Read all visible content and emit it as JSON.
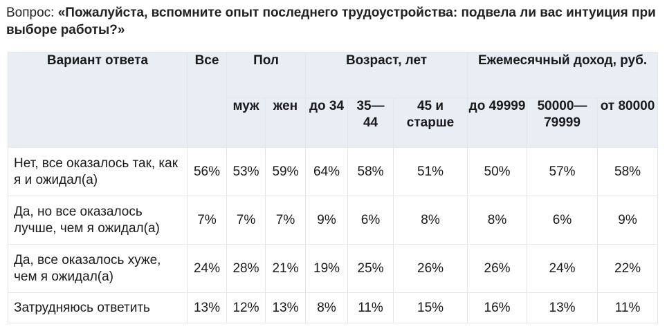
{
  "question": {
    "label": "Вопрос: ",
    "text": "«Пожалуйста, вспомните опыт последнего трудоустройства: подвела ли вас интуиция при выборе работы?»"
  },
  "table": {
    "headers": {
      "answer": "Вариант ответа",
      "all": "Все",
      "gender": "Пол",
      "age": "Возраст, лет",
      "income": "Ежемесячный доход, руб."
    },
    "subheaders": [
      "муж",
      "жен",
      "до 34",
      "35— 44",
      "45 и старше",
      "до 49999",
      "50000— 79999",
      "от 80000"
    ],
    "rows": [
      {
        "label": "Нет, все оказалось так, как я и ожидал(а)",
        "values": [
          "56%",
          "53%",
          "59%",
          "64%",
          "58%",
          "51%",
          "50%",
          "57%",
          "58%"
        ]
      },
      {
        "label": "Да, но все оказалось лучше, чем я ожидал(а)",
        "values": [
          "7%",
          "7%",
          "7%",
          "9%",
          "6%",
          "8%",
          "8%",
          "6%",
          "9%"
        ]
      },
      {
        "label": "Да, все оказалось хуже, чем я ожидал(а)",
        "values": [
          "24%",
          "28%",
          "21%",
          "19%",
          "25%",
          "26%",
          "26%",
          "24%",
          "22%"
        ]
      },
      {
        "label": "Затрудняюсь ответить",
        "values": [
          "13%",
          "12%",
          "13%",
          "8%",
          "11%",
          "15%",
          "16%",
          "13%",
          "11%"
        ]
      }
    ]
  },
  "colors": {
    "header_bg": "#e9edf4",
    "border": "#e3e6ea"
  }
}
